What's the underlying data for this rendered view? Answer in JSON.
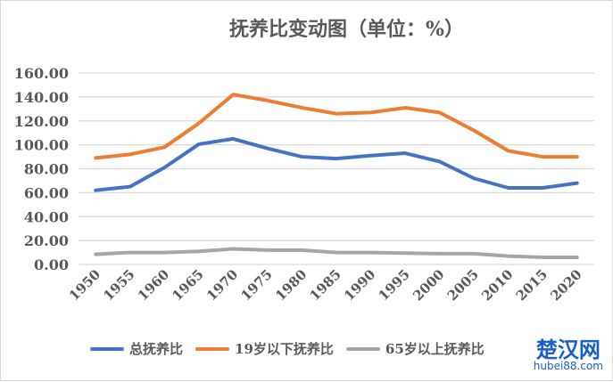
{
  "chart_data": {
    "type": "line",
    "title": "抚养比变动图（单位：%）",
    "categories": [
      "1950",
      "1955",
      "1960",
      "1965",
      "1970",
      "1975",
      "1980",
      "1985",
      "1990",
      "1995",
      "2000",
      "2005",
      "2010",
      "2015",
      "2020"
    ],
    "ylim": [
      0,
      160
    ],
    "yticks": [
      "0.00",
      "20.00",
      "40.00",
      "60.00",
      "80.00",
      "100.00",
      "120.00",
      "140.00",
      "160.00"
    ],
    "grid": true,
    "legend_position": "bottom",
    "series": [
      {
        "name": "总抚养比",
        "color": "#4472c4",
        "values": [
          62,
          65,
          81,
          100.5,
          105,
          97,
          90,
          88.5,
          91,
          93,
          86,
          72,
          64,
          64,
          68
        ]
      },
      {
        "name": "19岁以下抚养比",
        "color": "#ed7d31",
        "values": [
          89,
          92,
          98,
          118,
          142,
          137,
          131,
          126,
          127,
          131,
          127,
          112,
          95,
          90,
          90
        ]
      },
      {
        "name": "65岁以上抚养比",
        "color": "#a5a5a5",
        "values": [
          8.5,
          10,
          10,
          11,
          13,
          12,
          12,
          10,
          10,
          9.5,
          9,
          9,
          7,
          6,
          6
        ]
      }
    ]
  },
  "watermark": {
    "name": "楚汉网",
    "url": "hubei88.com"
  }
}
